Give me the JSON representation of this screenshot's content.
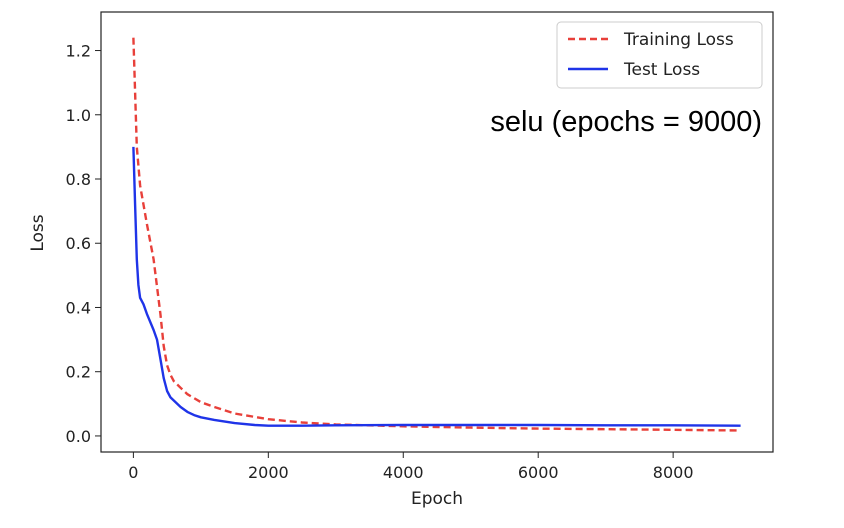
{
  "chart_data": {
    "type": "line",
    "title": "",
    "xlabel": "Epoch",
    "ylabel": "Loss",
    "xlim": [
      -480,
      9480
    ],
    "ylim": [
      -0.05,
      1.32
    ],
    "xticks": [
      0,
      2000,
      4000,
      6000,
      8000
    ],
    "xtick_labels": [
      "0",
      "2000",
      "4000",
      "6000",
      "8000"
    ],
    "yticks": [
      0.0,
      0.2,
      0.4,
      0.6,
      0.8,
      1.0,
      1.2
    ],
    "ytick_labels": [
      "0.0",
      "0.2",
      "0.4",
      "0.6",
      "0.8",
      "1.0",
      "1.2"
    ],
    "grid": false,
    "legend_position": "top-right",
    "annotation": "selu (epochs = 9000)",
    "series": [
      {
        "name": "Training Loss",
        "color": "#e8403a",
        "style": "dashed",
        "x": [
          0,
          50,
          100,
          150,
          200,
          300,
          400,
          450,
          500,
          550,
          600,
          700,
          800,
          1000,
          1200,
          1500,
          2000,
          2500,
          3000,
          4000,
          5000,
          6000,
          7000,
          8000,
          9000
        ],
        "y": [
          1.24,
          0.9,
          0.78,
          0.72,
          0.66,
          0.55,
          0.38,
          0.28,
          0.22,
          0.19,
          0.17,
          0.15,
          0.13,
          0.105,
          0.09,
          0.07,
          0.052,
          0.042,
          0.036,
          0.03,
          0.026,
          0.023,
          0.021,
          0.019,
          0.017
        ]
      },
      {
        "name": "Test Loss",
        "color": "#1f34e8",
        "style": "solid",
        "x": [
          0,
          25,
          50,
          75,
          100,
          150,
          200,
          300,
          350,
          400,
          450,
          500,
          550,
          600,
          700,
          800,
          900,
          1000,
          1200,
          1500,
          1800,
          2000,
          2500,
          3000,
          4000,
          5000,
          6000,
          7000,
          8000,
          9000
        ],
        "y": [
          0.9,
          0.72,
          0.55,
          0.47,
          0.43,
          0.41,
          0.38,
          0.33,
          0.3,
          0.24,
          0.18,
          0.14,
          0.12,
          0.11,
          0.09,
          0.075,
          0.065,
          0.058,
          0.05,
          0.04,
          0.034,
          0.032,
          0.032,
          0.033,
          0.034,
          0.034,
          0.034,
          0.033,
          0.033,
          0.032
        ]
      }
    ]
  }
}
